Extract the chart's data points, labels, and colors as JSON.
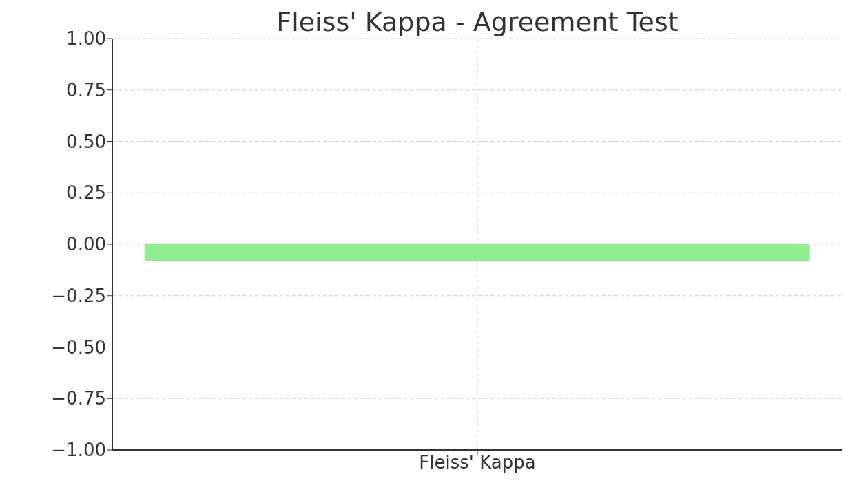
{
  "chart_data": {
    "type": "bar",
    "title": "Fleiss' Kappa - Agreement Test",
    "categories": [
      "Fleiss' Kappa"
    ],
    "values": [
      -0.08
    ],
    "color": "#90ee90",
    "ylim": [
      -1,
      1
    ],
    "yticks": [
      {
        "value": -1,
        "label": "−1.00"
      },
      {
        "value": -0.75,
        "label": "−0.75"
      },
      {
        "value": -0.5,
        "label": "−0.50"
      },
      {
        "value": -0.25,
        "label": "−0.25"
      },
      {
        "value": 0,
        "label": "0.00"
      },
      {
        "value": 0.25,
        "label": "0.25"
      },
      {
        "value": 0.5,
        "label": "0.50"
      },
      {
        "value": 0.75,
        "label": "0.75"
      },
      {
        "value": 1,
        "label": "1.00"
      }
    ],
    "grid": true
  }
}
